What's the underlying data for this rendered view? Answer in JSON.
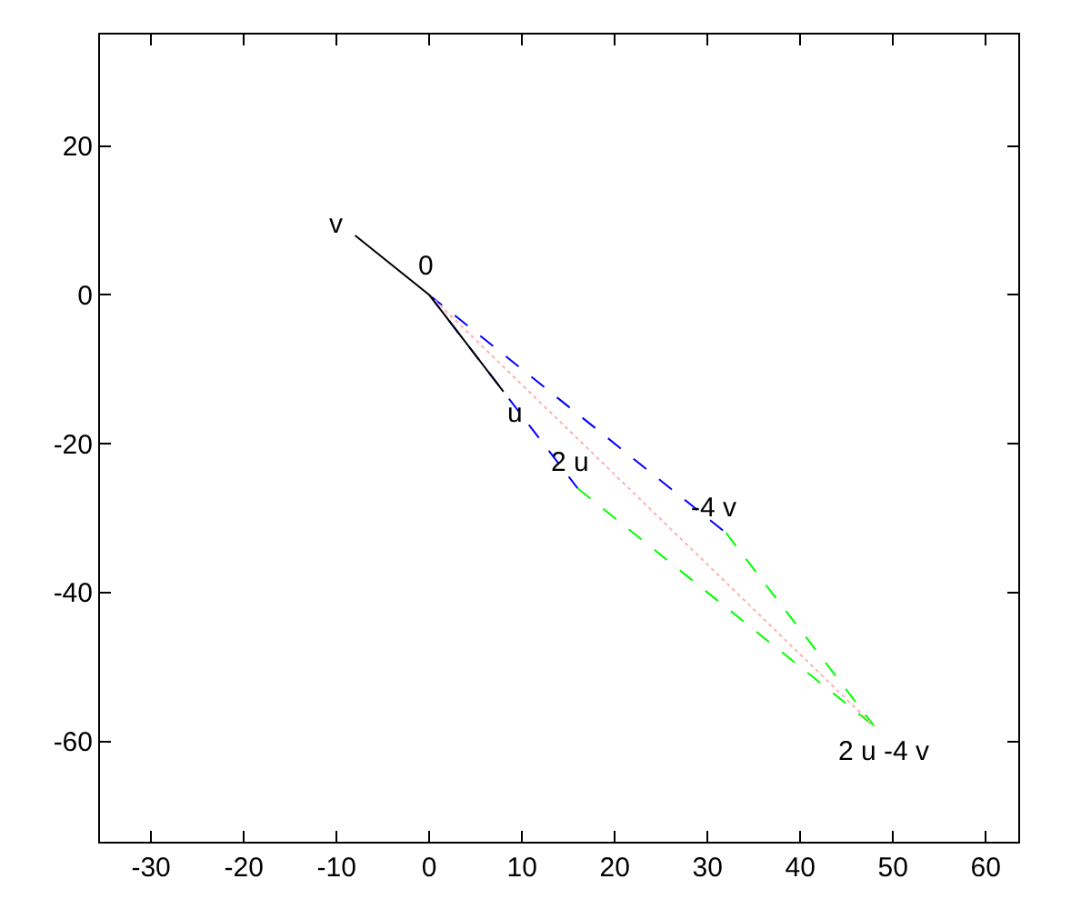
{
  "chart_data": {
    "type": "line",
    "xlim": [
      -35.5,
      63.5
    ],
    "ylim": [
      -73.5,
      35
    ],
    "xticks": [
      -30,
      -20,
      -10,
      0,
      10,
      20,
      30,
      40,
      50,
      60
    ],
    "yticks": [
      -60,
      -40,
      -20,
      0,
      20
    ],
    "series": [
      {
        "color": "#0000ff",
        "line_style": "dashed",
        "x": [
          0,
          16
        ],
        "values": [
          0,
          -26
        ]
      },
      {
        "color": "#0000ff",
        "line_style": "dashed",
        "x": [
          0,
          32
        ],
        "values": [
          0,
          -32
        ]
      },
      {
        "color": "#00ff00",
        "line_style": "dashed",
        "x": [
          16,
          48
        ],
        "values": [
          -26,
          -58
        ]
      },
      {
        "color": "#00ff00",
        "line_style": "dashed",
        "x": [
          32,
          48
        ],
        "values": [
          -32,
          -58
        ]
      },
      {
        "color": "#ffb0b0",
        "line_style": "dotted",
        "x": [
          0,
          48
        ],
        "values": [
          0,
          -58
        ]
      },
      {
        "color": "#000000",
        "line_style": "solid",
        "x": [
          -8,
          0,
          8
        ],
        "values": [
          8,
          0,
          -13
        ]
      }
    ],
    "annotations": [
      {
        "text": "v",
        "x": -8,
        "y": 8
      },
      {
        "text": "0",
        "x": 0,
        "y": 0
      },
      {
        "text": "u",
        "x": 8,
        "y": -13
      },
      {
        "text": "2 u",
        "x": 16,
        "y": -26
      },
      {
        "text": "-4 v",
        "x": 32,
        "y": -32
      },
      {
        "text": "2 u -4 v",
        "x": 48,
        "y": -58
      }
    ]
  }
}
